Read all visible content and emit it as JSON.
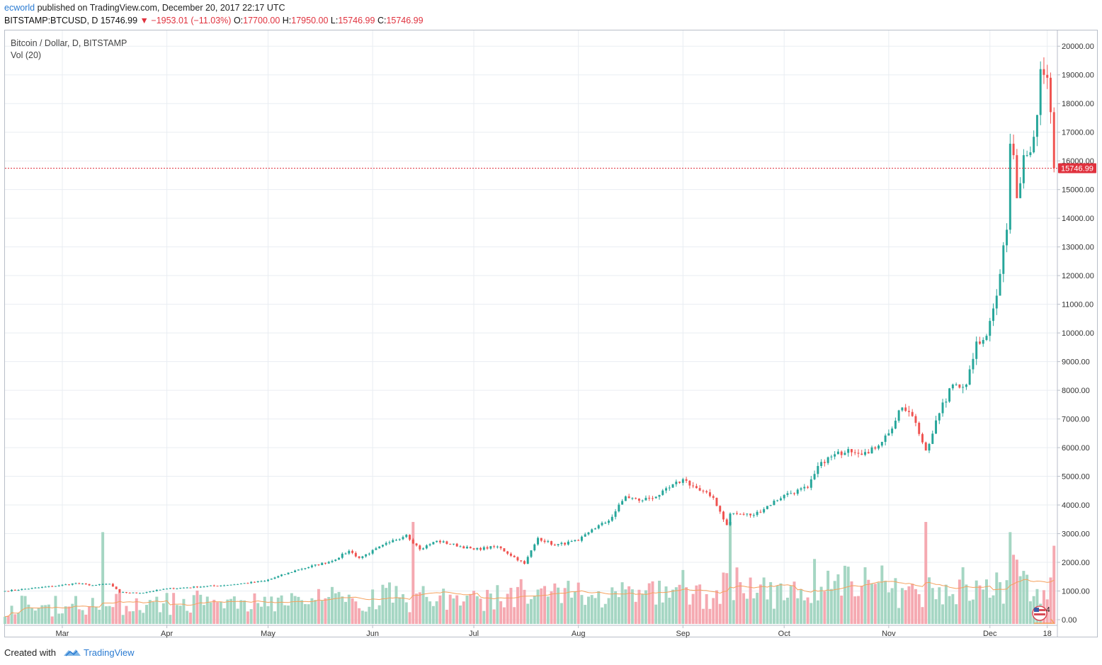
{
  "header": {
    "author": "ecworld",
    "published_text": "published on TradingView.com, December 20, 2017 22:17 UTC"
  },
  "ohlc": {
    "symbol": "BITSTAMP:BTCUSD, D",
    "last": "15746.99",
    "change_arrow": "▼",
    "change": "−1953.01 (−11.03%)",
    "open_label": "O:",
    "open": "17700.00",
    "high_label": "H:",
    "high": "17950.00",
    "low_label": "L:",
    "low": "15746.99",
    "close_label": "C:",
    "close": "15746.99"
  },
  "legend": {
    "title": "Bitcoin / Dollar, D, BITSTAMP",
    "volume": "Vol (20)"
  },
  "price_tag": "15746.99",
  "badge_count": "4",
  "footer": {
    "created_with": "Created with",
    "brand": "TradingView"
  },
  "colors": {
    "up": "#26a69a",
    "down": "#ef5350",
    "vol_up": "#a5d6c3",
    "vol_down": "#f5a9b1",
    "ma": "#f5a05c",
    "grid": "#e9edf2",
    "price_line": "#e0323e"
  },
  "chart_data": {
    "type": "candlestick",
    "series_name": "Bitcoin / Dollar, D, BITSTAMP",
    "x_range": [
      "2017-02-12",
      "2017-12-21"
    ],
    "y_range": [
      0,
      20500
    ],
    "y_ticks": [
      "0.00",
      "1000.00",
      "2000.00",
      "3000.00",
      "4000.00",
      "5000.00",
      "6000.00",
      "7000.00",
      "8000.00",
      "9000.00",
      "10000.00",
      "11000.00",
      "12000.00",
      "13000.00",
      "14000.00",
      "15000.00",
      "16000.00",
      "17000.00",
      "18000.00",
      "19000.00",
      "20000.00"
    ],
    "x_ticks": [
      {
        "date": "2017-03-01",
        "label": "Mar"
      },
      {
        "date": "2017-04-01",
        "label": "Apr"
      },
      {
        "date": "2017-05-01",
        "label": "May"
      },
      {
        "date": "2017-06-01",
        "label": "Jun"
      },
      {
        "date": "2017-07-01",
        "label": "Jul"
      },
      {
        "date": "2017-08-01",
        "label": "Aug"
      },
      {
        "date": "2017-09-01",
        "label": "Sep"
      },
      {
        "date": "2017-10-01",
        "label": "Oct"
      },
      {
        "date": "2017-11-01",
        "label": "Nov"
      },
      {
        "date": "2017-12-01",
        "label": "Dec"
      },
      {
        "date": "2017-12-18",
        "label": "18"
      }
    ],
    "last_price": 15746.99,
    "close_series": {
      "start_date": "2017-02-12",
      "step": "1 day",
      "keypoints": [
        [
          "2017-02-12",
          1000
        ],
        [
          "2017-02-28",
          1190
        ],
        [
          "2017-03-05",
          1270
        ],
        [
          "2017-03-10",
          1200
        ],
        [
          "2017-03-15",
          1250
        ],
        [
          "2017-03-18",
          950
        ],
        [
          "2017-03-24",
          930
        ],
        [
          "2017-04-01",
          1080
        ],
        [
          "2017-04-20",
          1220
        ],
        [
          "2017-04-30",
          1350
        ],
        [
          "2017-05-10",
          1750
        ],
        [
          "2017-05-20",
          2050
        ],
        [
          "2017-05-25",
          2400
        ],
        [
          "2017-05-28",
          2150
        ],
        [
          "2017-06-06",
          2700
        ],
        [
          "2017-06-11",
          2960
        ],
        [
          "2017-06-15",
          2450
        ],
        [
          "2017-06-20",
          2750
        ],
        [
          "2017-07-01",
          2450
        ],
        [
          "2017-07-08",
          2550
        ],
        [
          "2017-07-16",
          1950
        ],
        [
          "2017-07-20",
          2850
        ],
        [
          "2017-07-25",
          2600
        ],
        [
          "2017-08-01",
          2750
        ],
        [
          "2017-08-05",
          3150
        ],
        [
          "2017-08-10",
          3450
        ],
        [
          "2017-08-15",
          4300
        ],
        [
          "2017-08-19",
          4150
        ],
        [
          "2017-08-25",
          4350
        ],
        [
          "2017-09-01",
          4900
        ],
        [
          "2017-09-06",
          4500
        ],
        [
          "2017-09-10",
          4250
        ],
        [
          "2017-09-14",
          3300
        ],
        [
          "2017-09-15",
          3700
        ],
        [
          "2017-09-22",
          3650
        ],
        [
          "2017-10-01",
          4350
        ],
        [
          "2017-10-08",
          4600
        ],
        [
          "2017-10-12",
          5500
        ],
        [
          "2017-10-20",
          5950
        ],
        [
          "2017-10-26",
          5800
        ],
        [
          "2017-11-01",
          6500
        ],
        [
          "2017-11-05",
          7400
        ],
        [
          "2017-11-08",
          7100
        ],
        [
          "2017-11-12",
          5900
        ],
        [
          "2017-11-16",
          7200
        ],
        [
          "2017-11-20",
          8200
        ],
        [
          "2017-11-24",
          8200
        ],
        [
          "2017-11-27",
          9700
        ],
        [
          "2017-11-30",
          9900
        ],
        [
          "2017-12-03",
          11300
        ],
        [
          "2017-12-06",
          13600
        ],
        [
          "2017-12-07",
          16600
        ],
        [
          "2017-12-08",
          16200
        ],
        [
          "2017-12-09",
          14700
        ],
        [
          "2017-12-11",
          16200
        ],
        [
          "2017-12-13",
          16300
        ],
        [
          "2017-12-15",
          17600
        ],
        [
          "2017-12-16",
          19200
        ],
        [
          "2017-12-17",
          19000
        ],
        [
          "2017-12-18",
          18900
        ],
        [
          "2017-12-19",
          17700
        ],
        [
          "2017-12-20",
          15747
        ]
      ]
    },
    "volume_series": {
      "name": "Vol (20)",
      "y_range": [
        0,
        5000
      ],
      "spikes": [
        [
          "2017-03-13",
          2700
        ],
        [
          "2017-06-13",
          3000
        ],
        [
          "2017-09-15",
          3000
        ],
        [
          "2017-11-12",
          3000
        ],
        [
          "2017-12-07",
          2700
        ],
        [
          "2017-12-20",
          2300
        ]
      ]
    }
  }
}
